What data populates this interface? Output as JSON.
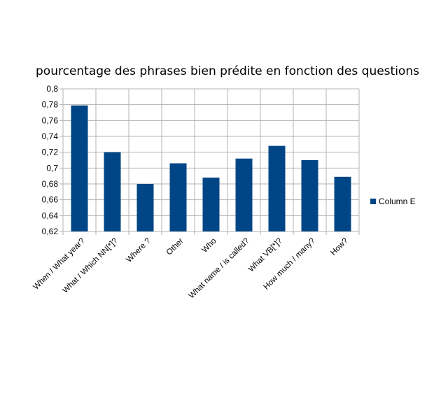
{
  "chart_data": {
    "type": "bar",
    "title": "pourcentage des phrases bien prédite en fonction des questions",
    "categories": [
      "When / What year?",
      "What / Which NN[*]?",
      "Where ?",
      "Other",
      "Who",
      "What name / is called?",
      "What VB[*]?",
      "How much / many?",
      "How?"
    ],
    "series": [
      {
        "name": "Column E",
        "values": [
          0.779,
          0.72,
          0.68,
          0.706,
          0.688,
          0.712,
          0.728,
          0.71,
          0.689
        ]
      }
    ],
    "yticks": [
      "0,62",
      "0,64",
      "0,66",
      "0,68",
      "0,7",
      "0,72",
      "0,74",
      "0,76",
      "0,78",
      "0,8"
    ],
    "ylim": [
      0.62,
      0.8
    ],
    "grid": true,
    "legend_position": "right",
    "bar_color": "#004586"
  }
}
